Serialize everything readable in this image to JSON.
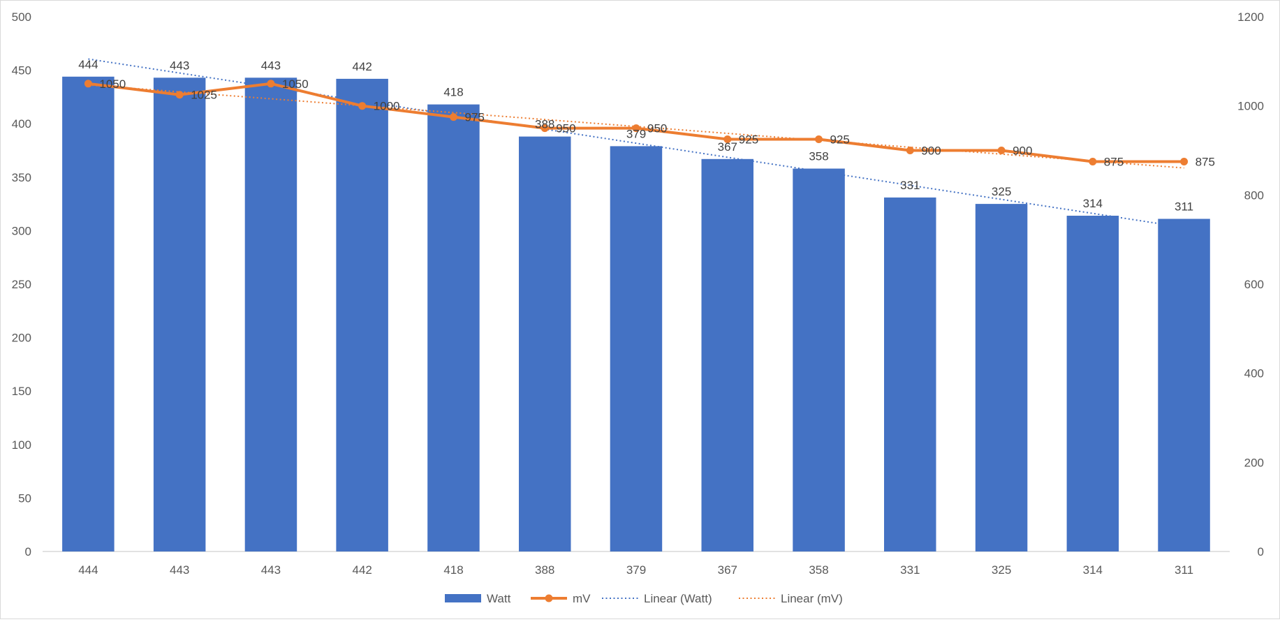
{
  "chart_data": {
    "type": "bar",
    "title": "",
    "xlabel": "",
    "ylabel": "",
    "categories": [
      "444",
      "443",
      "443",
      "442",
      "418",
      "388",
      "379",
      "367",
      "358",
      "331",
      "325",
      "314",
      "311"
    ],
    "series": [
      {
        "name": "Watt",
        "type": "bar",
        "axis": "left",
        "color": "#4472c4",
        "values": [
          444,
          443,
          443,
          442,
          418,
          388,
          379,
          367,
          358,
          331,
          325,
          314,
          311
        ]
      },
      {
        "name": "mV",
        "type": "line",
        "axis": "right",
        "color": "#ed7d31",
        "marker": "circle",
        "values": [
          1050,
          1025,
          1050,
          1000,
          975,
          950,
          950,
          925,
          925,
          900,
          900,
          875,
          875
        ]
      }
    ],
    "trendlines": [
      {
        "name": "Linear (Watt)",
        "series": "Watt",
        "color": "#4472c4",
        "style": "dotted"
      },
      {
        "name": "Linear (mV)",
        "series": "mV",
        "color": "#ed7d31",
        "style": "dotted"
      }
    ],
    "ylim": [
      0,
      500
    ],
    "y_ticks": [
      "0",
      "50",
      "100",
      "150",
      "200",
      "250",
      "300",
      "350",
      "400",
      "450",
      "500"
    ],
    "y2lim": [
      0,
      1200
    ],
    "y2_ticks": [
      "0",
      "200",
      "400",
      "600",
      "800",
      "1000",
      "1200"
    ],
    "grid": false,
    "legend": {
      "position": "bottom",
      "items": [
        {
          "label": "Watt",
          "kind": "bar",
          "color": "#4472c4"
        },
        {
          "label": "mV",
          "kind": "line-marker",
          "color": "#ed7d31"
        },
        {
          "label": "Linear (Watt)",
          "kind": "dotted",
          "color": "#4472c4"
        },
        {
          "label": "Linear (mV)",
          "kind": "dotted",
          "color": "#ed7d31"
        }
      ]
    }
  }
}
